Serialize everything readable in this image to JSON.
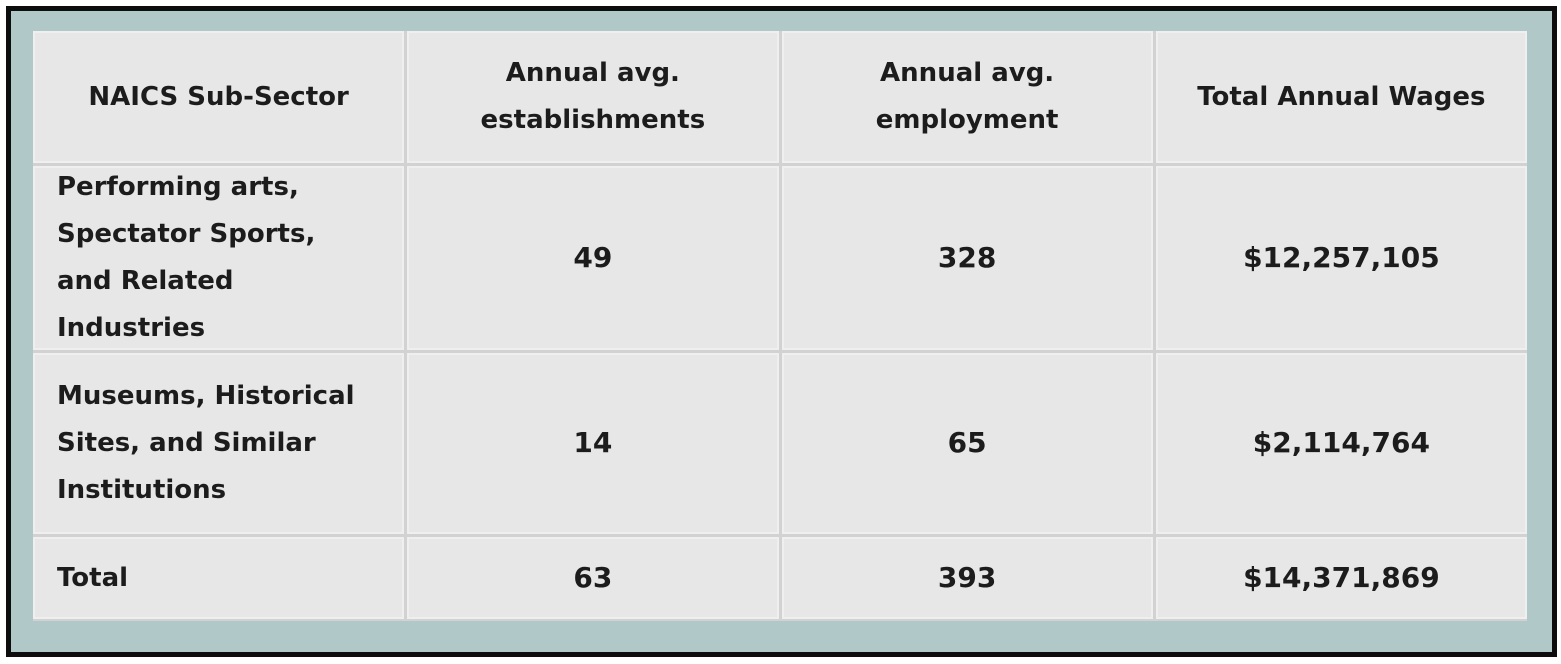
{
  "table": {
    "columns": [
      "NAICS Sub-Sector",
      "Annual avg. establishments",
      "Annual avg. employment",
      "Total Annual Wages"
    ],
    "rows": [
      {
        "sector": "Performing arts, Spectator Sports, and Related Industries",
        "establishments": "49",
        "employment": "328",
        "wages": "$12,257,105"
      },
      {
        "sector": "Museums, Historical Sites, and Similar Institutions",
        "establishments": "14",
        "employment": "65",
        "wages": "$2,114,764"
      }
    ],
    "total_row": {
      "sector": "Total",
      "establishments": "63",
      "employment": "393",
      "wages": "$14,371,869"
    }
  },
  "chart_data": {
    "type": "table",
    "columns": [
      "NAICS Sub-Sector",
      "Annual avg. establishments",
      "Annual avg. employment",
      "Total Annual Wages"
    ],
    "rows": [
      [
        "Performing arts, Spectator Sports, and Related Industries",
        49,
        328,
        "$12,257,105"
      ],
      [
        "Museums, Historical Sites, and Similar Institutions",
        14,
        65,
        "$2,114,764"
      ],
      [
        "Total",
        63,
        393,
        "$14,371,869"
      ]
    ]
  },
  "colors": {
    "frame_teal": "#b0c8c8",
    "outer_border": "#0d0d0d",
    "cell_background": "#e8e7e7",
    "grid_gap": "#d2d2d2",
    "text": "#1c1c1c"
  }
}
